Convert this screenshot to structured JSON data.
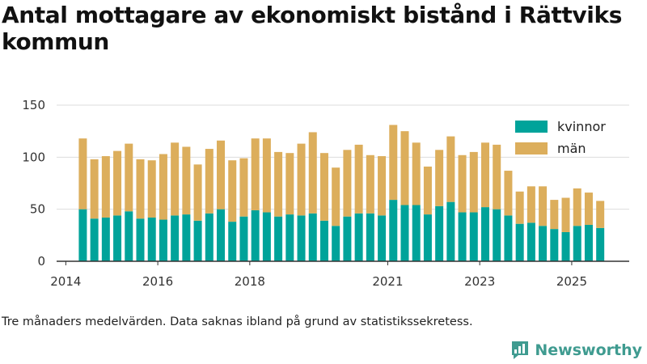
{
  "title": "Antal mottagare av ekonomiskt bistånd i Rättviks kommun",
  "footnote": "Tre månaders medelvärden. Data saknas ibland på grund av statistikssekretess.",
  "brand": {
    "name": "Newsworthy",
    "icon": "newsworthy-logo-icon"
  },
  "colors": {
    "kvinnor": "#00a39a",
    "man": "#dcae5c",
    "gridline": "#dddddd",
    "axis": "#333333",
    "brand": "#3f9b90"
  },
  "chart_data": {
    "type": "bar",
    "stacked": true,
    "title": "Antal mottagare av ekonomiskt bistånd i Rättviks kommun",
    "xlabel": "",
    "ylabel": "",
    "ylim": [
      0,
      150
    ],
    "yticks": [
      "0",
      "50",
      "100",
      "150"
    ],
    "xlim": [
      2013.8,
      2026.25
    ],
    "xticks": [
      {
        "label": "2014",
        "value": 2014
      },
      {
        "label": "2016",
        "value": 2016
      },
      {
        "label": "2018",
        "value": 2018
      },
      {
        "label": "2021",
        "value": 2021
      },
      {
        "label": "2023",
        "value": 2023
      },
      {
        "label": "2025",
        "value": 2025
      }
    ],
    "grid": true,
    "legend_position": "top-right",
    "categories": [
      "2014-Q2",
      "2014-Q3",
      "2014-Q4",
      "2015-Q1",
      "2015-Q2",
      "2015-Q3",
      "2015-Q4",
      "2016-Q1",
      "2016-Q2",
      "2016-Q3",
      "2016-Q4",
      "2017-Q1",
      "2017-Q2",
      "2017-Q3",
      "2017-Q4",
      "2018-Q1",
      "2018-Q2",
      "2018-Q3",
      "2018-Q4",
      "2019-Q1",
      "2019-Q2",
      "2019-Q3",
      "2019-Q4",
      "2020-Q1",
      "2020-Q2",
      "2020-Q3",
      "2020-Q4",
      "2021-Q1",
      "2021-Q2",
      "2021-Q3",
      "2021-Q4",
      "2022-Q1",
      "2022-Q2",
      "2022-Q3",
      "2022-Q4",
      "2023-Q1",
      "2023-Q2",
      "2023-Q3",
      "2023-Q4",
      "2024-Q1",
      "2024-Q2",
      "2024-Q3",
      "2024-Q4",
      "2025-Q1",
      "2025-Q2",
      "2025-Q3"
    ],
    "x": [
      2014.37,
      2014.62,
      2014.87,
      2015.12,
      2015.37,
      2015.62,
      2015.87,
      2016.12,
      2016.37,
      2016.62,
      2016.87,
      2017.12,
      2017.37,
      2017.62,
      2017.87,
      2018.12,
      2018.37,
      2018.62,
      2018.87,
      2019.12,
      2019.37,
      2019.62,
      2019.87,
      2020.12,
      2020.37,
      2020.62,
      2020.87,
      2021.12,
      2021.37,
      2021.62,
      2021.87,
      2022.12,
      2022.37,
      2022.62,
      2022.87,
      2023.12,
      2023.37,
      2023.62,
      2023.87,
      2024.12,
      2024.37,
      2024.62,
      2024.87,
      2025.12,
      2025.37,
      2025.62
    ],
    "series": [
      {
        "name": "kvinnor",
        "values": [
          50,
          41,
          42,
          44,
          48,
          41,
          42,
          40,
          44,
          45,
          39,
          46,
          50,
          38,
          43,
          49,
          47,
          43,
          45,
          44,
          46,
          39,
          34,
          43,
          46,
          46,
          44,
          59,
          54,
          54,
          45,
          53,
          57,
          47,
          47,
          52,
          50,
          44,
          36,
          37,
          34,
          31,
          28,
          34,
          35,
          32
        ]
      },
      {
        "name": "män",
        "values": [
          68,
          57,
          59,
          62,
          65,
          57,
          55,
          63,
          70,
          65,
          54,
          62,
          66,
          59,
          56,
          69,
          71,
          62,
          59,
          69,
          78,
          65,
          56,
          64,
          66,
          56,
          57,
          72,
          71,
          60,
          46,
          54,
          63,
          55,
          58,
          62,
          62,
          43,
          31,
          35,
          38,
          28,
          33,
          36,
          31,
          26
        ]
      }
    ]
  }
}
